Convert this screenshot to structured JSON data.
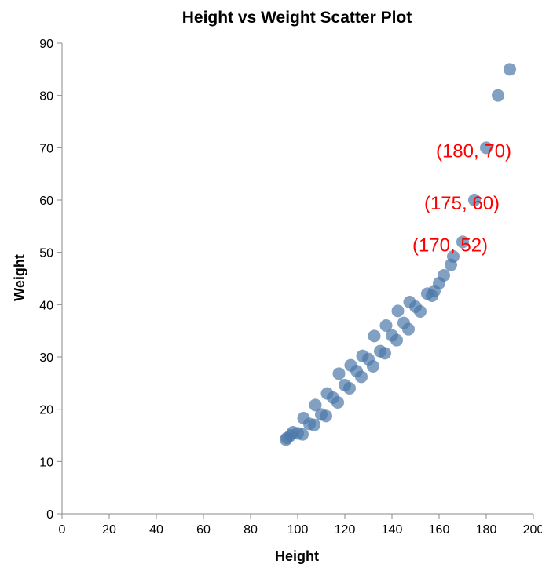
{
  "chart_data": {
    "type": "scatter",
    "title": "Height vs Weight Scatter Plot",
    "xlabel": "Height",
    "ylabel": "Weight",
    "xlim": [
      0,
      200
    ],
    "ylim": [
      0,
      90
    ],
    "x_ticks": [
      0,
      20,
      40,
      60,
      80,
      100,
      120,
      140,
      160,
      180,
      200
    ],
    "y_ticks": [
      0,
      10,
      20,
      30,
      40,
      50,
      60,
      70,
      80,
      90
    ],
    "grid": false,
    "point_color": "#4c78a8",
    "annotation_color": "#ff0000",
    "points": [
      {
        "x": 95,
        "y": 14.2
      },
      {
        "x": 95.5,
        "y": 14.5
      },
      {
        "x": 97,
        "y": 15
      },
      {
        "x": 98,
        "y": 15.6
      },
      {
        "x": 100,
        "y": 15.4
      },
      {
        "x": 102,
        "y": 15.2
      },
      {
        "x": 102.5,
        "y": 18.3
      },
      {
        "x": 105,
        "y": 17.2
      },
      {
        "x": 107,
        "y": 17
      },
      {
        "x": 107.5,
        "y": 20.8
      },
      {
        "x": 110,
        "y": 19
      },
      {
        "x": 112,
        "y": 18.7
      },
      {
        "x": 112.5,
        "y": 23
      },
      {
        "x": 115,
        "y": 22.2
      },
      {
        "x": 117,
        "y": 21.3
      },
      {
        "x": 117.5,
        "y": 26.8
      },
      {
        "x": 120,
        "y": 24.6
      },
      {
        "x": 122,
        "y": 24
      },
      {
        "x": 122.5,
        "y": 28.4
      },
      {
        "x": 125,
        "y": 27.3
      },
      {
        "x": 127,
        "y": 26.2
      },
      {
        "x": 127.5,
        "y": 30.2
      },
      {
        "x": 130,
        "y": 29.6
      },
      {
        "x": 132,
        "y": 28.2
      },
      {
        "x": 132.5,
        "y": 34
      },
      {
        "x": 135,
        "y": 31.1
      },
      {
        "x": 137,
        "y": 30.7
      },
      {
        "x": 137.5,
        "y": 36
      },
      {
        "x": 140,
        "y": 34.1
      },
      {
        "x": 142,
        "y": 33.2
      },
      {
        "x": 142.5,
        "y": 38.8
      },
      {
        "x": 145,
        "y": 36.5
      },
      {
        "x": 147,
        "y": 35.3
      },
      {
        "x": 147.5,
        "y": 40.5
      },
      {
        "x": 150,
        "y": 39.6
      },
      {
        "x": 152,
        "y": 38.7
      },
      {
        "x": 155,
        "y": 42.1
      },
      {
        "x": 157,
        "y": 41.7
      },
      {
        "x": 158,
        "y": 42.6
      },
      {
        "x": 160,
        "y": 44.1
      },
      {
        "x": 162,
        "y": 45.6
      },
      {
        "x": 165,
        "y": 47.6
      },
      {
        "x": 166,
        "y": 49.2
      },
      {
        "x": 170,
        "y": 52
      },
      {
        "x": 175,
        "y": 60
      },
      {
        "x": 180,
        "y": 70
      },
      {
        "x": 185,
        "y": 80
      },
      {
        "x": 190,
        "y": 85
      }
    ],
    "annotations": [
      {
        "text": "(170, 52)",
        "x": 170,
        "y": 52
      },
      {
        "text": "(175, 60)",
        "x": 175,
        "y": 60
      },
      {
        "text": "(180, 70)",
        "x": 180,
        "y": 70
      }
    ]
  }
}
